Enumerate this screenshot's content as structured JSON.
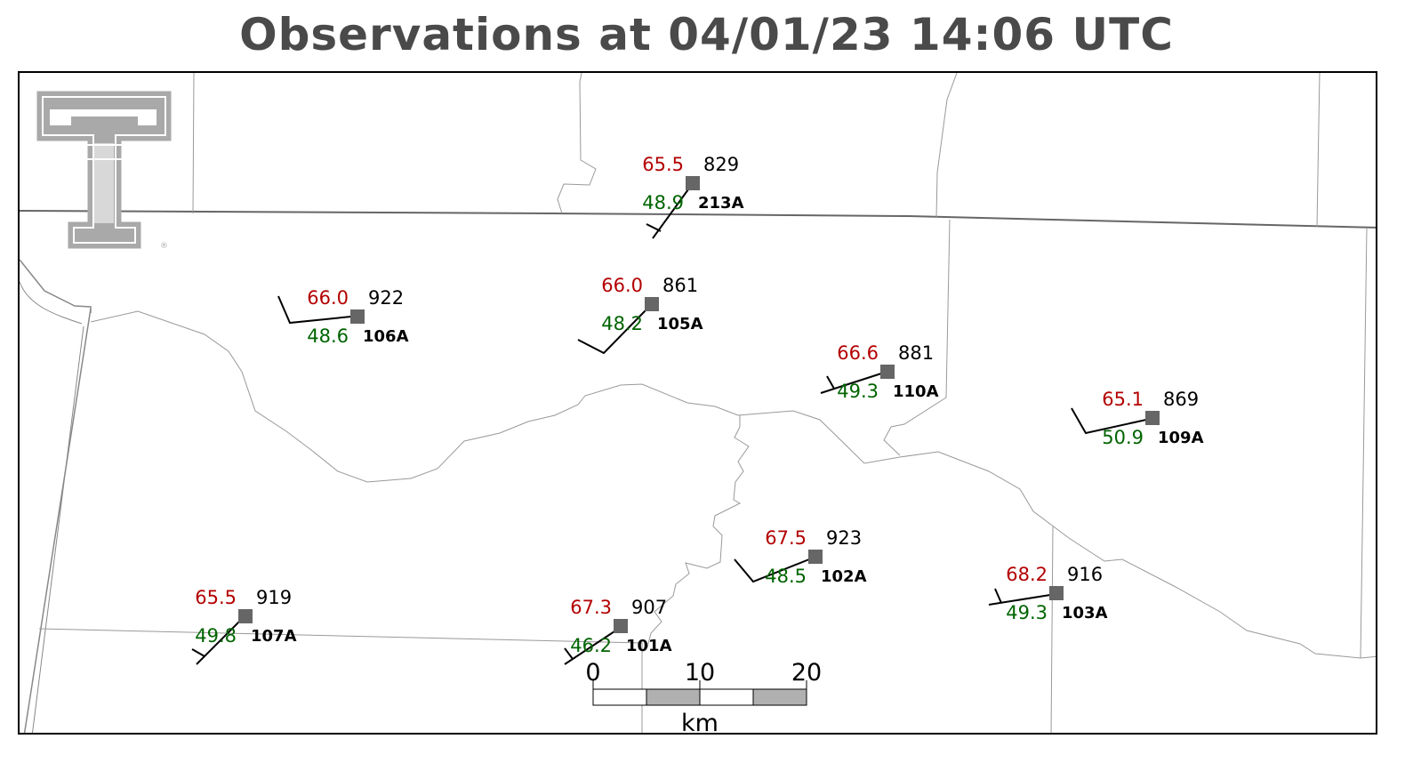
{
  "title": "Observations at 04/01/23 14:06 UTC",
  "logo": {
    "name": "texas-tech-double-t-logo",
    "mark": "®"
  },
  "colors": {
    "temperature": "#b30000",
    "dewpoint": "#006400",
    "pressure": "#000000",
    "station_marker": "#666666",
    "title": "#4a4a4a"
  },
  "stations": [
    {
      "id": "213A",
      "temp": "65.5",
      "dew": "48.9",
      "pres": "829"
    },
    {
      "id": "106A",
      "temp": "66.0",
      "dew": "48.6",
      "pres": "922"
    },
    {
      "id": "105A",
      "temp": "66.0",
      "dew": "48.2",
      "pres": "861"
    },
    {
      "id": "110A",
      "temp": "66.6",
      "dew": "49.3",
      "pres": "881"
    },
    {
      "id": "109A",
      "temp": "65.1",
      "dew": "50.9",
      "pres": "869"
    },
    {
      "id": "102A",
      "temp": "67.5",
      "dew": "48.5",
      "pres": "923"
    },
    {
      "id": "103A",
      "temp": "68.2",
      "dew": "49.3",
      "pres": "916"
    },
    {
      "id": "107A",
      "temp": "65.5",
      "dew": "49.8",
      "pres": "919"
    },
    {
      "id": "101A",
      "temp": "67.3",
      "dew": "46.2",
      "pres": "907"
    }
  ],
  "scale_bar": {
    "ticks": [
      "0",
      "10",
      "20"
    ],
    "unit": "km"
  }
}
